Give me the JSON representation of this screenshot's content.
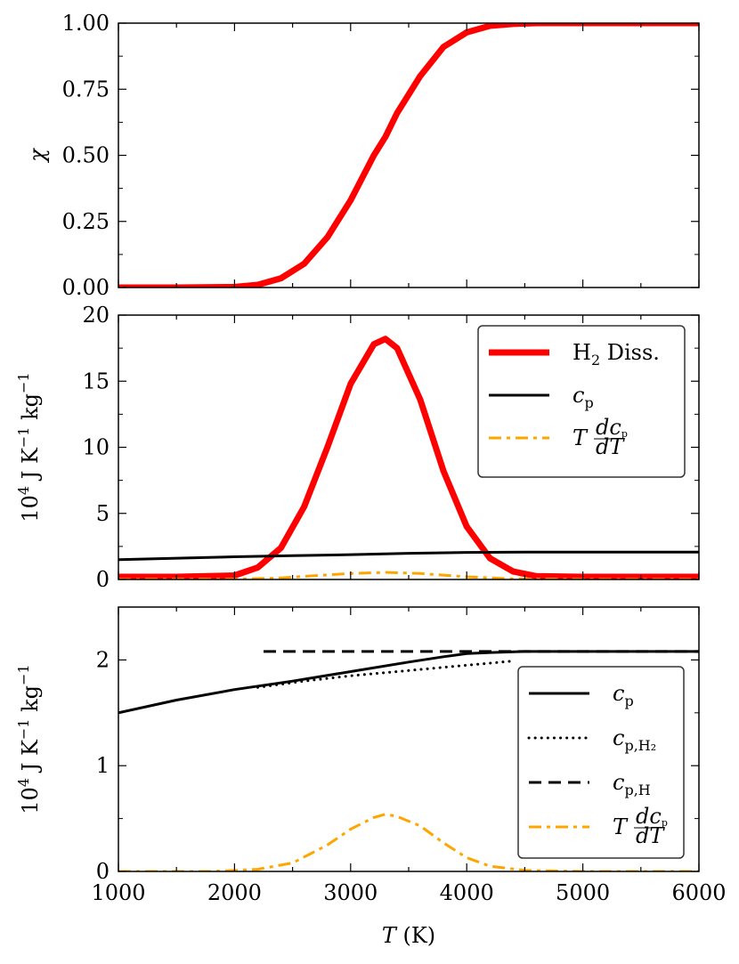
{
  "chart_data": [
    {
      "type": "line",
      "panel": "top",
      "ylabel": "χ",
      "xlim": [
        1000,
        6000
      ],
      "ylim": [
        0,
        1
      ],
      "yticks": [
        "0.00",
        "0.25",
        "0.50",
        "0.75",
        "1.00"
      ],
      "series": [
        {
          "name": "χ",
          "color": "#ff0000",
          "style": "solid",
          "x": [
            1000,
            1500,
            2000,
            2200,
            2400,
            2600,
            2800,
            3000,
            3200,
            3300,
            3400,
            3600,
            3800,
            4000,
            4200,
            4400,
            4600,
            5000,
            5500,
            6000
          ],
          "y": [
            0,
            0,
            0.002,
            0.01,
            0.035,
            0.09,
            0.19,
            0.33,
            0.5,
            0.57,
            0.66,
            0.8,
            0.91,
            0.965,
            0.99,
            0.997,
            1,
            1,
            1,
            1
          ]
        }
      ]
    },
    {
      "type": "line",
      "panel": "middle",
      "ylabel": "10^4 J K^-1 kg^-1",
      "xlim": [
        1000,
        6000
      ],
      "ylim": [
        0,
        20
      ],
      "yticks": [
        "0",
        "5",
        "10",
        "15",
        "20"
      ],
      "legend": {
        "position": "top-right",
        "entries": [
          {
            "label": "H",
            "sub": "2",
            "rest": " Diss."
          },
          {
            "label": "c",
            "sub": "p"
          },
          {
            "label": "T dc",
            "sub": "p",
            "rest": "/dT"
          }
        ]
      },
      "series": [
        {
          "name": "H2 Diss.",
          "color": "#ff0000",
          "style": "solid",
          "x": [
            1000,
            1500,
            2000,
            2200,
            2400,
            2600,
            2800,
            3000,
            3200,
            3300,
            3400,
            3600,
            3800,
            4000,
            4200,
            4400,
            4600,
            5000,
            6000
          ],
          "y": [
            0.2,
            0.2,
            0.3,
            0.9,
            2.4,
            5.5,
            10.0,
            14.8,
            17.8,
            18.2,
            17.5,
            13.6,
            8.2,
            4.0,
            1.6,
            0.6,
            0.25,
            0.2,
            0.2
          ]
        },
        {
          "name": "cp",
          "color": "#000000",
          "style": "solid",
          "x": [
            1000,
            2000,
            2500,
            3000,
            3500,
            4000,
            4500,
            5000,
            6000
          ],
          "y": [
            1.5,
            1.72,
            1.8,
            1.88,
            1.98,
            2.05,
            2.07,
            2.07,
            2.07
          ]
        },
        {
          "name": "T dcp/dT",
          "color": "#ffa500",
          "style": "dashdot",
          "x": [
            1000,
            2000,
            2400,
            2800,
            3000,
            3300,
            3600,
            4000,
            4400,
            5000,
            6000
          ],
          "y": [
            0,
            0.02,
            0.12,
            0.35,
            0.45,
            0.54,
            0.45,
            0.2,
            0.05,
            0,
            0
          ]
        }
      ]
    },
    {
      "type": "line",
      "panel": "bottom",
      "ylabel": "10^4 J K^-1 kg^-1",
      "xlabel": "T (K)",
      "xlim": [
        1000,
        6000
      ],
      "ylim": [
        0,
        2.5
      ],
      "yticks": [
        "0",
        "1",
        "2"
      ],
      "xticks": [
        "1000",
        "2000",
        "3000",
        "4000",
        "5000",
        "6000"
      ],
      "legend": {
        "position": "right",
        "entries": [
          {
            "label": "c",
            "sub": "p"
          },
          {
            "label": "c",
            "sub": "p,H₂"
          },
          {
            "label": "c",
            "sub": "p,H"
          },
          {
            "label": "T dc",
            "sub": "p",
            "rest": "/dT"
          }
        ]
      },
      "series": [
        {
          "name": "cp",
          "color": "#000000",
          "style": "solid",
          "x": [
            1000,
            1500,
            2000,
            2500,
            3000,
            3500,
            3800,
            4000,
            4200,
            4500,
            5000,
            6000
          ],
          "y": [
            1.5,
            1.62,
            1.72,
            1.8,
            1.89,
            1.98,
            2.03,
            2.06,
            2.07,
            2.08,
            2.08,
            2.08
          ]
        },
        {
          "name": "cp,H2",
          "color": "#000000",
          "style": "dotted",
          "x": [
            2200,
            2600,
            3000,
            3400,
            3800,
            4200,
            4400
          ],
          "y": [
            1.74,
            1.8,
            1.85,
            1.89,
            1.93,
            1.97,
            1.99
          ]
        },
        {
          "name": "cp,H",
          "color": "#000000",
          "style": "dashed",
          "x": [
            2250,
            3000,
            4000,
            5000,
            6000
          ],
          "y": [
            2.08,
            2.08,
            2.08,
            2.08,
            2.08
          ]
        },
        {
          "name": "T dcp/dT",
          "color": "#ffa500",
          "style": "dashdot",
          "x": [
            1000,
            1800,
            2200,
            2500,
            2800,
            3000,
            3200,
            3300,
            3400,
            3600,
            3800,
            4000,
            4200,
            4500,
            5000,
            6000
          ],
          "y": [
            0,
            0,
            0.02,
            0.08,
            0.25,
            0.4,
            0.51,
            0.54,
            0.52,
            0.43,
            0.27,
            0.13,
            0.05,
            0.01,
            0,
            0
          ]
        }
      ]
    }
  ]
}
